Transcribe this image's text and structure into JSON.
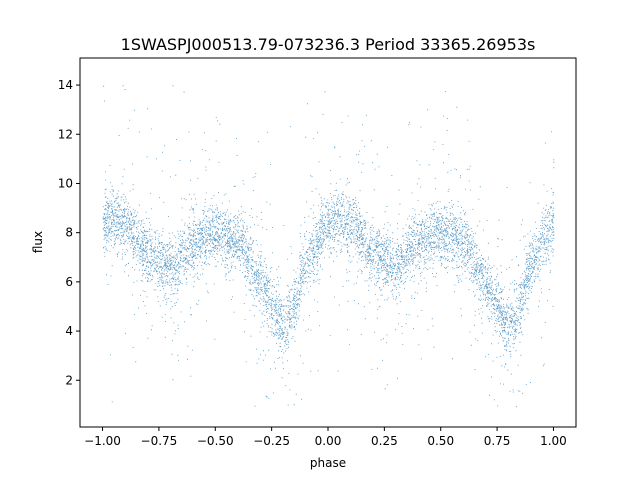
{
  "chart_data": {
    "type": "scatter",
    "title": "1SWASPJ000513.79-073236.3 Period 33365.26953s",
    "xlabel": "phase",
    "ylabel": "flux",
    "xlim": [
      -1.1,
      1.1
    ],
    "ylim": [
      0.1,
      15.1
    ],
    "x_ticks": [
      -1.0,
      -0.75,
      -0.5,
      -0.25,
      0.0,
      0.25,
      0.5,
      0.75,
      1.0
    ],
    "x_tick_labels": [
      "−1.00",
      "−0.75",
      "−0.50",
      "−0.25",
      "0.00",
      "0.25",
      "0.50",
      "0.75",
      "1.00"
    ],
    "y_ticks": [
      2,
      4,
      6,
      8,
      10,
      12,
      14
    ],
    "y_tick_labels": [
      "2",
      "4",
      "6",
      "8",
      "10",
      "12",
      "14"
    ],
    "grid": false,
    "legend": "none",
    "point_color": "#1f77b4",
    "series": [
      {
        "x_range": [
          -1.0,
          1.0
        ],
        "folded_period_phase": 1.0,
        "light_curve_profile": {
          "phase": [
            0.0,
            0.05,
            0.1,
            0.2,
            0.3,
            0.4,
            0.5,
            0.6,
            0.7,
            0.75,
            0.8,
            0.85,
            0.9,
            1.0
          ],
          "flux": [
            8.3,
            8.6,
            8.3,
            7.2,
            6.6,
            7.6,
            8.0,
            7.6,
            6.0,
            5.0,
            4.2,
            5.0,
            6.8,
            8.3
          ]
        },
        "scatter_sigma": 0.6,
        "outlier_range": [
          0.8,
          14.5
        ]
      }
    ]
  }
}
